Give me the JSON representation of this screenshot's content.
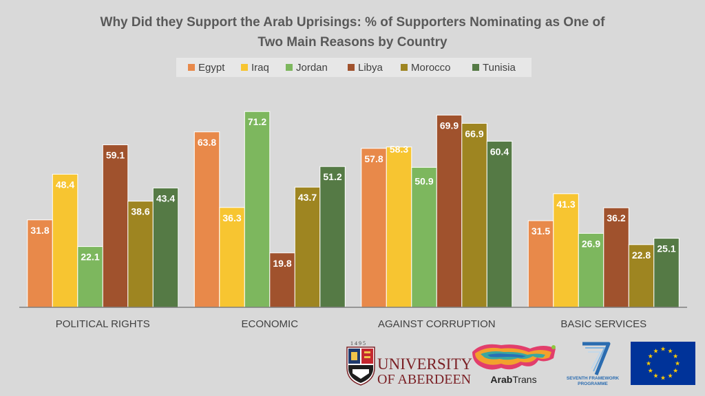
{
  "chart_data": {
    "type": "bar",
    "title_line1": "Why Did they Support the Arab Uprisings: % of Supporters Nominating as One of",
    "title_line2": "Two Main Reasons by Country",
    "categories": [
      "POLITICAL RIGHTS",
      "ECONOMIC",
      "AGAINST CORRUPTION",
      "BASIC SERVICES"
    ],
    "series": [
      {
        "name": "Egypt",
        "color": "#e8894a",
        "values": [
          31.8,
          63.8,
          57.8,
          31.5
        ]
      },
      {
        "name": "Iraq",
        "color": "#f7c531",
        "values": [
          48.4,
          36.3,
          58.3,
          41.3
        ]
      },
      {
        "name": "Jordan",
        "color": "#7db75e",
        "values": [
          22.1,
          71.2,
          50.9,
          26.9
        ]
      },
      {
        "name": "Libya",
        "color": "#a0522d",
        "values": [
          59.1,
          19.8,
          69.9,
          36.2
        ]
      },
      {
        "name": "Morocco",
        "color": "#9e8521",
        "values": [
          38.6,
          43.7,
          66.9,
          22.8
        ]
      },
      {
        "name": "Tunisia",
        "color": "#557a45",
        "values": [
          43.4,
          51.2,
          60.4,
          25.1
        ]
      }
    ],
    "ylim": [
      0,
      80
    ],
    "grid": false,
    "legend_position": "top-center"
  },
  "logos": {
    "aberdeen_year_digits": "1 4 9 5",
    "aberdeen_line1": "UNIVERSITY",
    "aberdeen_line2": "OF ABERDEEN",
    "arabtrans_bold": "Arab",
    "arabtrans_rest": "Trans",
    "fp7_line1": "SEVENTH FRAMEWORK",
    "fp7_line2": "PROGRAMME"
  }
}
